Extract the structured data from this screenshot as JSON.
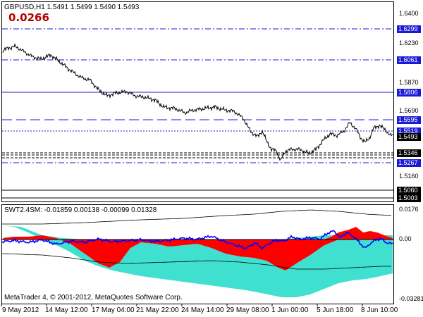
{
  "main_chart": {
    "header": "GBPUSD,H1  1.5491 1.5499 1.5490 1.5493",
    "spread_value": "0.0266",
    "spread_color": "#b40000",
    "price_axis": [
      "1.6400",
      "1.6230",
      "1.5870",
      "1.5690",
      "1.5160"
    ],
    "level_labels": [
      {
        "text": "1.6299",
        "style": "blue"
      },
      {
        "text": "1.6061",
        "style": "blue"
      },
      {
        "text": "1.5806",
        "style": "blue"
      },
      {
        "text": "1.5595",
        "style": "blue"
      },
      {
        "text": "1.5519",
        "style": "blue"
      },
      {
        "text": "1.5493",
        "style": "dark"
      },
      {
        "text": "1.5346",
        "style": "dark"
      },
      {
        "text": "1.5267",
        "style": "blue"
      },
      {
        "text": "1.5060",
        "style": "dark"
      },
      {
        "text": "1.5003",
        "style": "dark"
      }
    ]
  },
  "indicator": {
    "header": "SWT2.4SM:  -0.01859 0.00138 -0.00099 0.01328",
    "axis": [
      "0.0176",
      "0.00",
      "-0.03281"
    ],
    "copyright": "MetaTrader 4, © 2001-2012, MetaQuotes Software Corp.",
    "colors": {
      "red": "#ff0000",
      "turquoise": "#40e0d0",
      "blue": "#0000ff"
    }
  },
  "time_axis": [
    "9 May 2012",
    "14 May 12:00",
    "17 May 04:00",
    "21 May 22:00",
    "24 May 14:00",
    "29 May 08:00",
    "1 Jun 00:00",
    "5 Jun 18:00",
    "8 Jun 10:00"
  ],
  "colors": {
    "level_line": "#1a1ad6",
    "price_line": "#000000"
  }
}
